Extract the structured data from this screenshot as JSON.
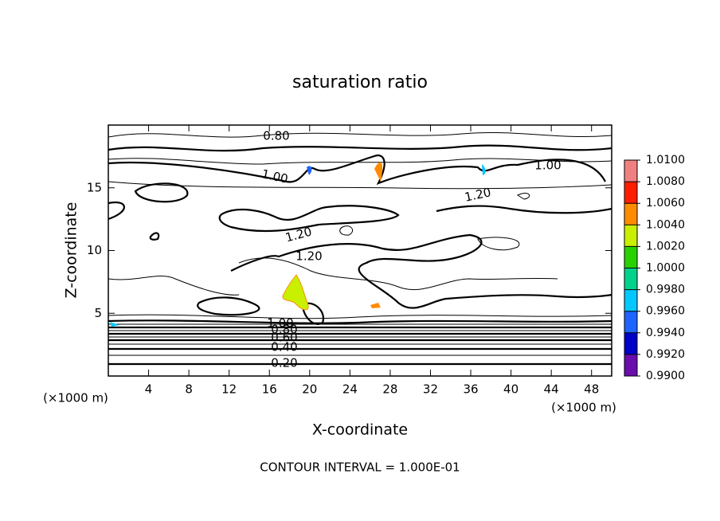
{
  "chart_data": {
    "type": "contour",
    "title": "saturation ratio",
    "x_label": "X-coordinate",
    "y_label": "Z-coordinate",
    "x_unit": "(×1000 m)",
    "y_unit": "(×1000 m)",
    "footer": "CONTOUR INTERVAL = 1.000E-01",
    "xlim": [
      0,
      50
    ],
    "xticks": [
      4,
      8,
      12,
      16,
      20,
      24,
      28,
      32,
      36,
      40,
      44,
      48
    ],
    "ylim": [
      0,
      20
    ],
    "yticks": [
      5,
      10,
      15
    ],
    "contour_labels": [
      "0.80",
      "1.00",
      "1.00",
      "1.20",
      "1.20",
      "1.20",
      "1.00",
      "0.80",
      "0.60",
      "0.40",
      "0.20"
    ],
    "colorbar": {
      "lim": [
        0.99,
        1.01
      ],
      "ticks": [
        {
          "value": 0.99,
          "label": "0.9900"
        },
        {
          "value": 0.992,
          "label": "0.9920"
        },
        {
          "value": 0.994,
          "label": "0.9940"
        },
        {
          "value": 0.996,
          "label": "0.9960"
        },
        {
          "value": 0.998,
          "label": "0.9980"
        },
        {
          "value": 1.0,
          "label": "1.0000"
        },
        {
          "value": 1.002,
          "label": "1.0020"
        },
        {
          "value": 1.004,
          "label": "1.0040"
        },
        {
          "value": 1.006,
          "label": "1.0060"
        },
        {
          "value": 1.008,
          "label": "1.0080"
        },
        {
          "value": 1.01,
          "label": "1.0100"
        }
      ],
      "colors": [
        "#6a0dad",
        "#0000c8",
        "#1e64ff",
        "#00c8ff",
        "#00d28c",
        "#28d200",
        "#c8f000",
        "#ff8c00",
        "#ff1e00",
        "#f08080"
      ]
    }
  }
}
